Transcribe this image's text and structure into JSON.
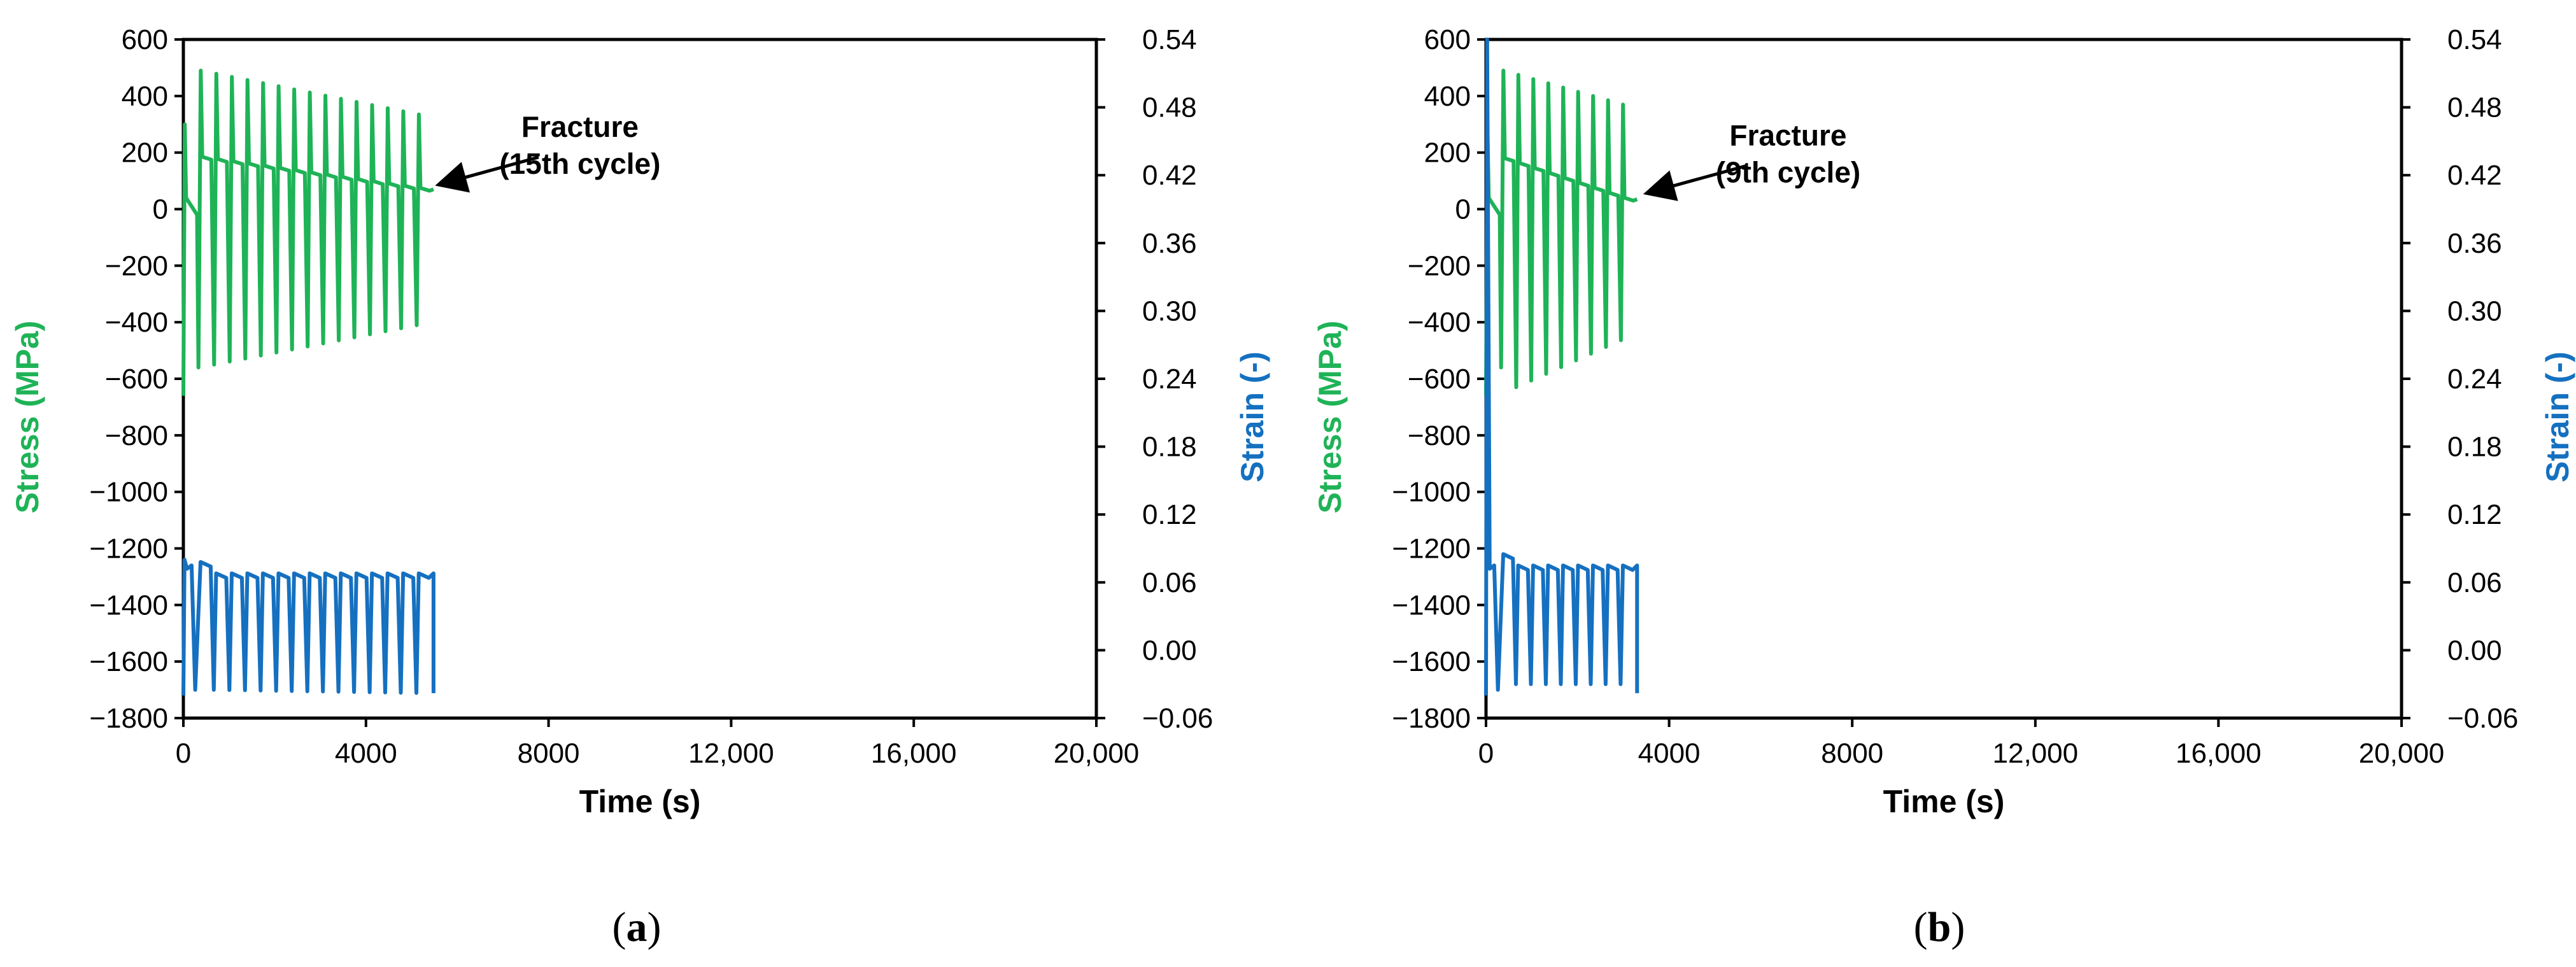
{
  "colors": {
    "stress": "#1FB357",
    "strain": "#1570C0",
    "axis": "#000000"
  },
  "chart_data": [
    {
      "type": "line",
      "panel_label": "a",
      "xlabel": "Time (s)",
      "ylabel_left": "Stress (MPa)",
      "ylabel_right": "Strain (-)",
      "xlim": [
        0,
        20000
      ],
      "ylim_left": [
        -1800,
        600
      ],
      "ylim_right": [
        -0.06,
        0.54
      ],
      "x_ticks": [
        "0",
        "4000",
        "8000",
        "12,000",
        "16,000",
        "20,000"
      ],
      "y_left_ticks": [
        "600",
        "400",
        "200",
        "0",
        "−200",
        "−400",
        "−600",
        "−800",
        "−1000",
        "−1200",
        "−1400",
        "−1600",
        "−1800"
      ],
      "y_right_ticks": [
        "0.54",
        "0.48",
        "0.42",
        "0.36",
        "0.30",
        "0.24",
        "0.18",
        "0.12",
        "0.06",
        "0.00",
        "−0.06"
      ],
      "grid": false,
      "annotation": {
        "lines": [
          "Fracture",
          "(15th cycle)"
        ],
        "x": 5480,
        "y": 80
      },
      "cycles": 15,
      "cycle_period_s": 360,
      "end_time_s": 5480,
      "series": [
        {
          "axis": "left",
          "stress_max_start": 490,
          "stress_max_end": 335,
          "stress_min_start": -550,
          "stress_min_end": -400,
          "plateau_start": 185,
          "plateau_end": 75
        },
        {
          "axis": "right",
          "strain_max": 0.068,
          "strain_min_start": -0.035,
          "strain_min_end": -0.038,
          "initial_peak": 0.08
        }
      ]
    },
    {
      "type": "line",
      "panel_label": "b",
      "xlabel": "Time (s)",
      "ylabel_left": "Stress (MPa)",
      "ylabel_right": "Strain (-)",
      "xlim": [
        0,
        20000
      ],
      "ylim_left": [
        -1800,
        600
      ],
      "ylim_right": [
        -0.06,
        0.54
      ],
      "x_ticks": [
        "0",
        "4000",
        "8000",
        "12,000",
        "16,000",
        "20,000"
      ],
      "y_left_ticks": [
        "600",
        "400",
        "200",
        "0",
        "−200",
        "−400",
        "−600",
        "−800",
        "−1000",
        "−1200",
        "−1400",
        "−1600",
        "−1800"
      ],
      "y_right_ticks": [
        "0.54",
        "0.48",
        "0.42",
        "0.36",
        "0.30",
        "0.24",
        "0.18",
        "0.12",
        "0.06",
        "0.00",
        "−0.06"
      ],
      "grid": false,
      "annotation": {
        "lines": [
          "Fracture",
          "(9th cycle)"
        ],
        "x": 3400,
        "y": 50
      },
      "cycles": 9,
      "cycle_period_s": 360,
      "end_time_s": 3300,
      "series": [
        {
          "axis": "left",
          "stress_max_start": 490,
          "stress_max_end": 370,
          "stress_min_start": -630,
          "stress_min_end": -440,
          "plateau_start": 180,
          "plateau_end": 40
        },
        {
          "axis": "right",
          "strain_max": 0.075,
          "strain_min_start": -0.03,
          "strain_min_end": -0.03,
          "initial_peak": 0.54
        }
      ]
    }
  ]
}
